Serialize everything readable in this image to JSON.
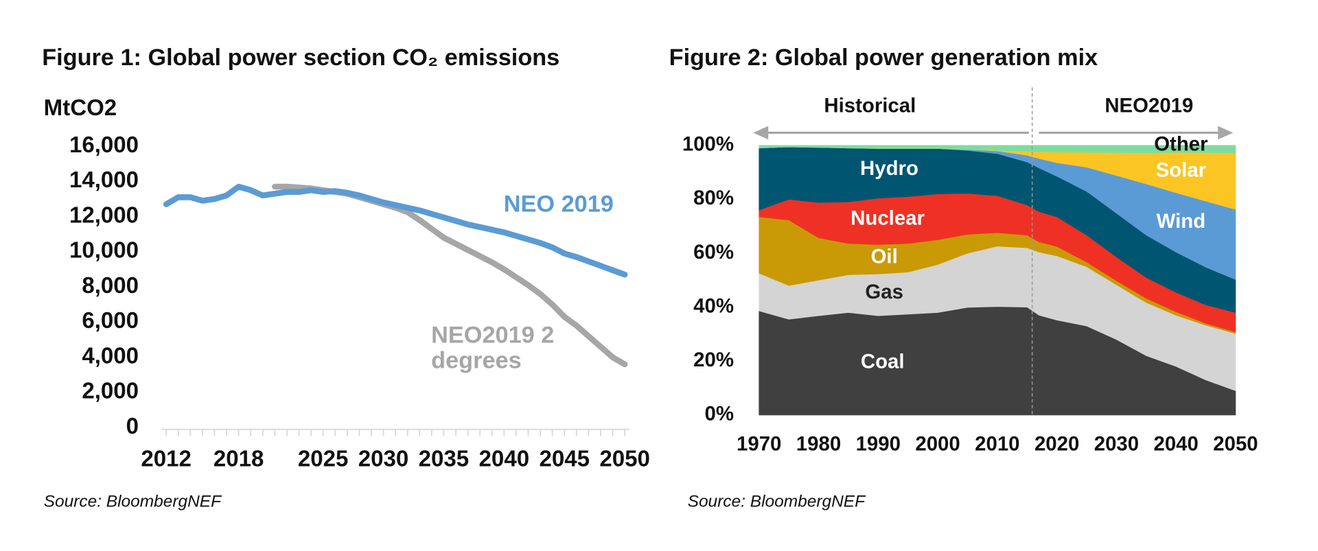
{
  "chart_data": [
    {
      "type": "line",
      "title": "Figure 1: Global power section CO₂ emissions",
      "y_label": "MtCO2",
      "source": "Source: BloombergNEF",
      "x": [
        2012,
        2013,
        2014,
        2015,
        2016,
        2017,
        2018,
        2019,
        2020,
        2021,
        2022,
        2023,
        2024,
        2025,
        2026,
        2027,
        2028,
        2029,
        2030,
        2031,
        2032,
        2033,
        2034,
        2035,
        2036,
        2037,
        2038,
        2039,
        2040,
        2041,
        2042,
        2043,
        2044,
        2045,
        2046,
        2047,
        2048,
        2049,
        2050
      ],
      "xlim": [
        2011.6,
        2050.4
      ],
      "xticks": [
        2012,
        2018,
        2025,
        2030,
        2035,
        2040,
        2045,
        2050
      ],
      "ylim": [
        0,
        16000
      ],
      "yticks": [
        0,
        {
          "value": 2000,
          "label": "2,000"
        },
        {
          "value": 4000,
          "label": "4,000"
        },
        {
          "value": 6000,
          "label": "6,000"
        },
        {
          "value": 8000,
          "label": "8,000"
        },
        {
          "value": 10000,
          "label": "10,000"
        },
        {
          "value": 12000,
          "label": "12,000"
        },
        {
          "value": 14000,
          "label": "14,000"
        },
        {
          "value": 16000,
          "label": "16,000"
        }
      ],
      "grid": false,
      "series": [
        {
          "name": "NEO2019 2 degrees",
          "color": "#a6a6a6",
          "values": [
            null,
            null,
            null,
            null,
            null,
            null,
            null,
            null,
            null,
            13700,
            13700,
            13650,
            13600,
            13500,
            13400,
            13300,
            13100,
            12900,
            12700,
            12500,
            12250,
            11800,
            11300,
            10800,
            10450,
            10100,
            9750,
            9400,
            9000,
            8550,
            8100,
            7600,
            7000,
            6300,
            5800,
            5200,
            4600,
            4000,
            3600
          ]
        },
        {
          "name": "NEO 2019",
          "color": "#5b9bd5",
          "values": [
            12700,
            13100,
            13100,
            12900,
            13000,
            13200,
            13700,
            13500,
            13200,
            13300,
            13400,
            13400,
            13500,
            13400,
            13450,
            13350,
            13200,
            13000,
            12800,
            12650,
            12500,
            12350,
            12150,
            11950,
            11750,
            11550,
            11400,
            11250,
            11100,
            10900,
            10700,
            10500,
            10250,
            9900,
            9700,
            9450,
            9200,
            8950,
            8700
          ]
        }
      ]
    },
    {
      "type": "stacked_area",
      "title": "Figure 2: Global power generation mix",
      "source": "Source: BloombergNEF",
      "periods": [
        "Historical",
        "NEO2019"
      ],
      "x": [
        1970,
        1975,
        1980,
        1985,
        1990,
        1995,
        2000,
        2005,
        2010,
        2015,
        2017,
        2020,
        2025,
        2030,
        2035,
        2040,
        2045,
        2050
      ],
      "xlim": [
        1970,
        2050
      ],
      "xticks": [
        1970,
        1980,
        1990,
        2000,
        2010,
        2020,
        2030,
        2040,
        2050
      ],
      "ylim": [
        0,
        100
      ],
      "yticks": [
        {
          "value": 0,
          "label": "0%"
        },
        {
          "value": 20,
          "label": "20%"
        },
        {
          "value": 40,
          "label": "40%"
        },
        {
          "value": 60,
          "label": "60%"
        },
        {
          "value": 80,
          "label": "80%"
        },
        {
          "value": 100,
          "label": "100%"
        }
      ],
      "series": [
        {
          "name": "Coal",
          "color": "#404040",
          "values": [
            38.6,
            35.5,
            36.8,
            38,
            36.8,
            37.4,
            38,
            39.9,
            40.2,
            40,
            37,
            35.2,
            33,
            28,
            22,
            18,
            13,
            9
          ]
        },
        {
          "name": "Gas",
          "color": "#d4d4d4",
          "values": [
            14,
            12.5,
            13.2,
            14,
            15.5,
            15.6,
            17.8,
            20.1,
            22.4,
            22,
            23.4,
            23.8,
            22,
            20.3,
            19.7,
            19,
            20.3,
            21.2
          ]
        },
        {
          "name": "Oil",
          "color": "#c99a06",
          "values": [
            20.9,
            24.3,
            15.7,
            11.6,
            10.9,
            10.6,
            9.2,
            7,
            5,
            4.7,
            3.8,
            3.5,
            1.7,
            1.5,
            1.6,
            1.3,
            0.7,
            0.6
          ]
        },
        {
          "name": "Nuclear",
          "color": "#ee3124",
          "values": [
            2.5,
            7.7,
            13.1,
            15.4,
            17.2,
            17.4,
            17,
            15.2,
            13.7,
            11.2,
            11.2,
            11,
            10,
            8.8,
            7.7,
            7.2,
            6.8,
            7.2
          ]
        },
        {
          "name": "Hydro",
          "color": "#005670",
          "values": [
            23,
            19.4,
            20.4,
            20,
            18.4,
            17.8,
            16.8,
            15.9,
            15.6,
            15.9,
            16.2,
            15,
            16.2,
            16.2,
            15.7,
            14.9,
            14,
            12.2
          ]
        },
        {
          "name": "Wind",
          "color": "#5b9bd5",
          "values": [
            0,
            0,
            0,
            0,
            0,
            0,
            0,
            0.3,
            1,
            2.5,
            3.5,
            5,
            9,
            14,
            19,
            22,
            24.5,
            26
          ]
        },
        {
          "name": "Solar",
          "color": "#fbc524",
          "values": [
            0,
            0,
            0,
            0,
            0,
            0,
            0,
            0,
            0.2,
            1.5,
            2.5,
            4,
            5.5,
            8.5,
            11.5,
            15,
            18,
            21
          ]
        },
        {
          "name": "Other",
          "color": "#7fdc9f",
          "values": [
            1,
            0.6,
            0.8,
            1,
            1.2,
            1.2,
            1.2,
            1.6,
            1.9,
            2.2,
            2.4,
            2.5,
            2.6,
            2.7,
            2.8,
            2.6,
            2.7,
            2.8
          ]
        }
      ]
    }
  ]
}
